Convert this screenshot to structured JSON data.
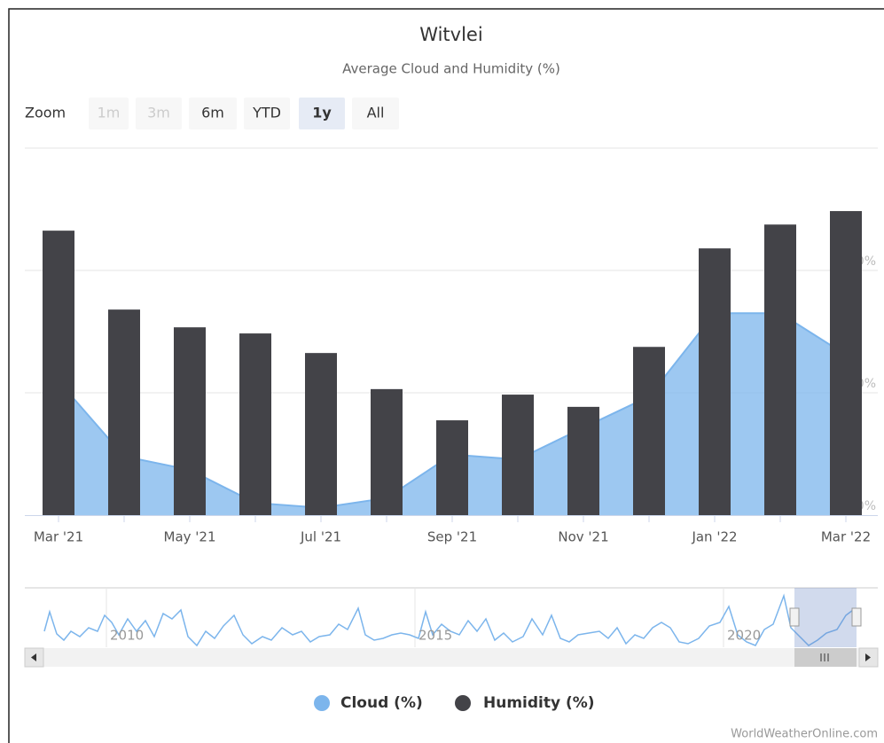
{
  "chart_data": {
    "type": "bar-area",
    "title": "Witvlei",
    "subtitle": "Average Cloud and Humidity (%)",
    "zoom": {
      "label": "Zoom",
      "buttons": [
        "1m",
        "3m",
        "6m",
        "YTD",
        "1y",
        "All"
      ],
      "states": [
        "disabled",
        "disabled",
        "normal",
        "normal",
        "selected",
        "normal"
      ]
    },
    "categories": [
      "Mar '21",
      null,
      "May '21",
      null,
      "Jul '21",
      null,
      "Sep '21",
      null,
      "Nov '21",
      null,
      "Jan '22",
      null,
      "Mar '22"
    ],
    "series": [
      {
        "name": "Cloud (%)",
        "type": "area",
        "color": "#7cb5ec",
        "values": [
          21.9,
          9.6,
          7.4,
          2.0,
          1.2,
          2.8,
          9.9,
          9.1,
          14.3,
          19.4,
          33.0,
          33.0,
          26.2
        ]
      },
      {
        "name": "Humidity (%)",
        "type": "column",
        "color": "#434348",
        "values": [
          46.5,
          33.6,
          30.7,
          29.7,
          26.5,
          20.6,
          15.5,
          19.7,
          17.7,
          27.5,
          43.6,
          47.5,
          49.7
        ]
      }
    ],
    "ylim": [
      0,
      60
    ],
    "yticks": [
      {
        "value": 0,
        "label": "0%"
      },
      {
        "value": 20,
        "label": "20%"
      },
      {
        "value": 40,
        "label": "40%"
      }
    ],
    "grid": true,
    "navigator_labels": [
      "2010",
      "2015",
      "2020"
    ],
    "credits": "WorldWeatherOnline.com"
  }
}
